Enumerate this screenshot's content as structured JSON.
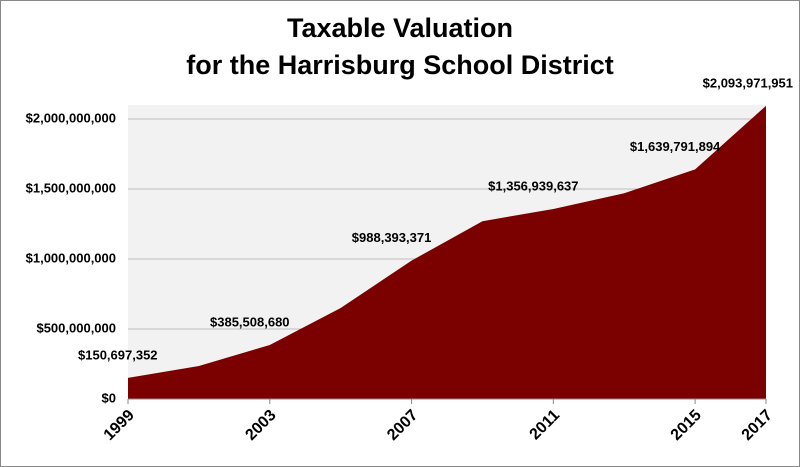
{
  "chart_data": {
    "type": "area",
    "title": [
      "Taxable Valuation",
      "for the Harrisburg School District"
    ],
    "x": [
      1999,
      2001,
      2003,
      2005,
      2007,
      2009,
      2011,
      2013,
      2015,
      2017
    ],
    "values": [
      150697352,
      236000000,
      385508680,
      650000000,
      988393371,
      1270000000,
      1356939637,
      1470000000,
      1639791894,
      2093971951
    ],
    "value_labels": [
      "$150,697,352",
      null,
      "$385,508,680",
      null,
      "$988,393,371",
      null,
      "$1,356,939,637",
      null,
      "$1,639,791,894",
      "$2,093,971,951"
    ],
    "color": "#7b0000",
    "xlim": [
      1999,
      2017
    ],
    "xticks": [
      1999,
      2003,
      2007,
      2011,
      2015,
      2017
    ],
    "ylim": [
      0,
      2100000000
    ],
    "yticks": [
      {
        "value": 0,
        "label": "$0"
      },
      {
        "value": 500000000,
        "label": "$500,000,000"
      },
      {
        "value": 1000000000,
        "label": "$1,000,000,000"
      },
      {
        "value": 1500000000,
        "label": "$1,500,000,000"
      },
      {
        "value": 2000000000,
        "label": "$2,000,000,000"
      }
    ],
    "grid": true
  }
}
